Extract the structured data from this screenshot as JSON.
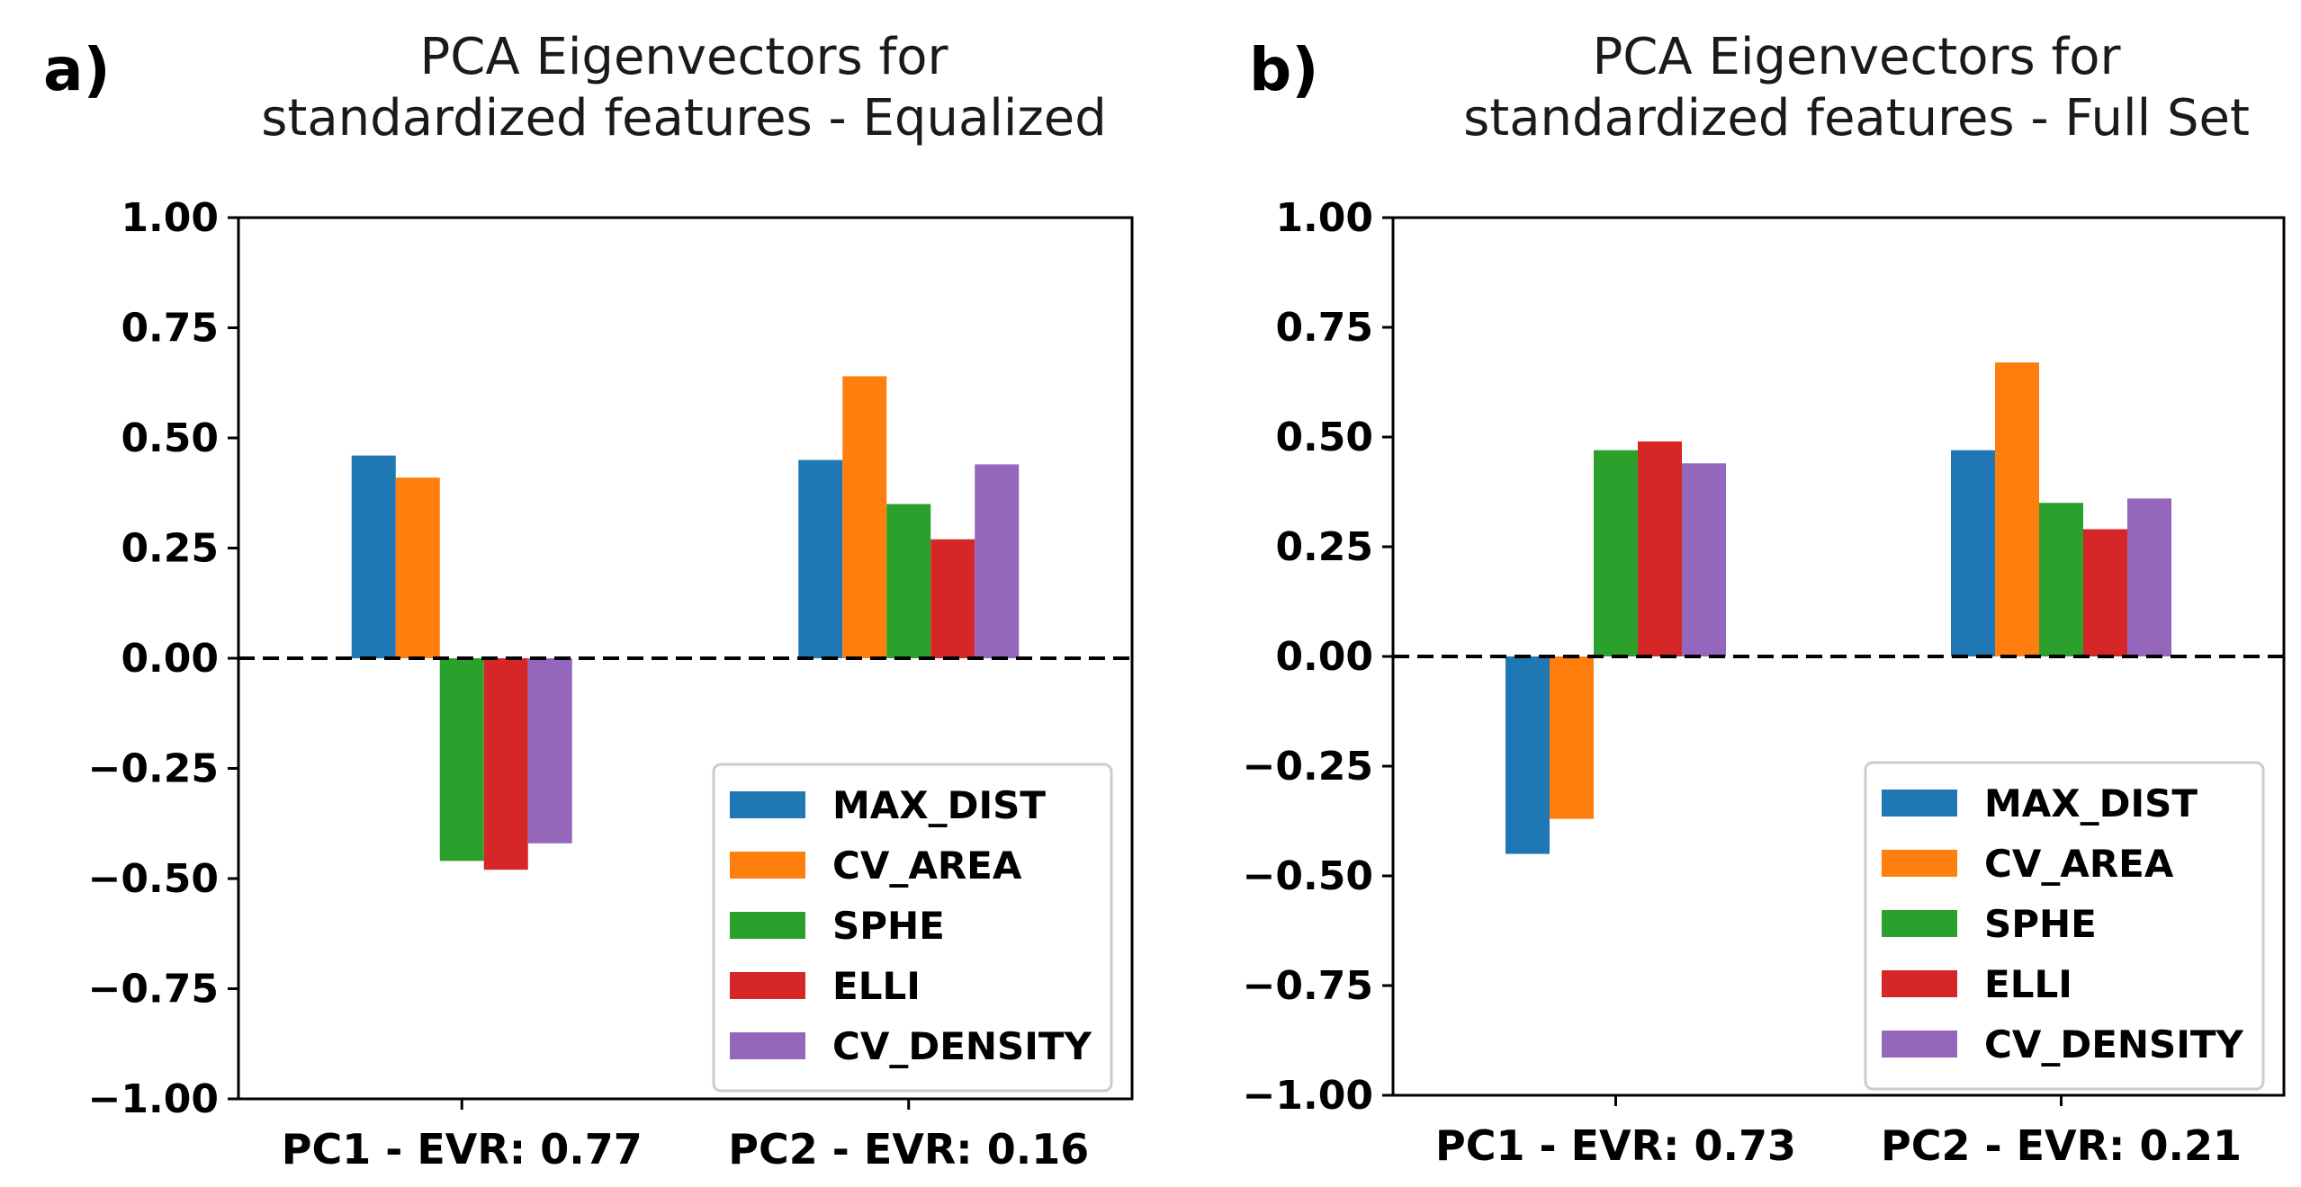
{
  "colors": {
    "MAX_DIST": "#1f77b4",
    "CV_AREA": "#ff7f0e",
    "SPHE": "#2ca02c",
    "ELLI": "#d62728",
    "CV_DENSITY": "#9467bd"
  },
  "chart_data": [
    {
      "type": "bar",
      "panel_label": "a)",
      "title_line1": "PCA Eigenvectors for",
      "title_line2": "standardized features - Equalized",
      "categories": [
        "PC1 - EVR: 0.77",
        "PC2 - EVR: 0.16"
      ],
      "series": [
        {
          "name": "MAX_DIST",
          "values": [
            0.46,
            0.45
          ]
        },
        {
          "name": "CV_AREA",
          "values": [
            0.41,
            0.64
          ]
        },
        {
          "name": "SPHE",
          "values": [
            -0.46,
            0.35
          ]
        },
        {
          "name": "ELLI",
          "values": [
            -0.48,
            0.27
          ]
        },
        {
          "name": "CV_DENSITY",
          "values": [
            -0.42,
            0.44
          ]
        }
      ],
      "ylim": [
        -1.0,
        1.0
      ],
      "yticks": [
        "1.00",
        "0.75",
        "0.50",
        "0.25",
        "0.00",
        "−0.25",
        "−0.50",
        "−0.75",
        "−1.00"
      ],
      "zero_line": "dashed",
      "legend_position": "lower-right",
      "grid": false
    },
    {
      "type": "bar",
      "panel_label": "b)",
      "title_line1": "PCA Eigenvectors for",
      "title_line2": "standardized features - Full Set",
      "categories": [
        "PC1 - EVR: 0.73",
        "PC2 - EVR: 0.21"
      ],
      "series": [
        {
          "name": "MAX_DIST",
          "values": [
            -0.45,
            0.47
          ]
        },
        {
          "name": "CV_AREA",
          "values": [
            -0.37,
            0.67
          ]
        },
        {
          "name": "SPHE",
          "values": [
            0.47,
            0.35
          ]
        },
        {
          "name": "ELLI",
          "values": [
            0.49,
            0.29
          ]
        },
        {
          "name": "CV_DENSITY",
          "values": [
            0.44,
            0.36
          ]
        }
      ],
      "ylim": [
        -1.0,
        1.0
      ],
      "yticks": [
        "1.00",
        "0.75",
        "0.50",
        "0.25",
        "0.00",
        "−0.25",
        "−0.50",
        "−0.75",
        "−1.00"
      ],
      "zero_line": "dashed",
      "legend_position": "lower-right",
      "grid": false
    }
  ]
}
